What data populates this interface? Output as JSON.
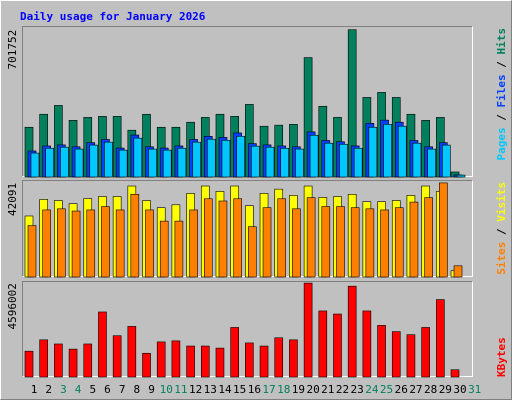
{
  "chart_data": [
    {
      "type": "bar",
      "title": "Daily usage for January 2026",
      "legend_separator": " / ",
      "ylim": [
        0,
        710000
      ],
      "yticks": [
        701752
      ],
      "grid": false,
      "series": [
        {
          "name": "Hits",
          "color": "#00805c",
          "values": [
            237000,
            299000,
            341000,
            270000,
            284000,
            289000,
            289000,
            223000,
            299000,
            237000,
            237000,
            261000,
            284000,
            299000,
            289000,
            346000,
            242000,
            247000,
            251000,
            569000,
            337000,
            284000,
            701752,
            379000,
            403000,
            379000,
            299000,
            270000,
            284000,
            24000,
            0
          ]
        },
        {
          "name": "Files",
          "color": "#0040ff",
          "values": [
            124000,
            148000,
            153000,
            144000,
            164000,
            179000,
            138000,
            200000,
            144000,
            138000,
            148000,
            179000,
            194000,
            189000,
            210000,
            159000,
            153000,
            148000,
            144000,
            215000,
            174000,
            168000,
            148000,
            256000,
            271000,
            261000,
            174000,
            144000,
            164000,
            10000,
            0
          ]
        },
        {
          "name": "Pages",
          "color": "#00c8ff",
          "values": [
            114000,
            137000,
            142000,
            133000,
            152000,
            166000,
            128000,
            185000,
            133000,
            128000,
            137000,
            166000,
            180000,
            175000,
            194000,
            147000,
            142000,
            137000,
            133000,
            199000,
            161000,
            156000,
            137000,
            237000,
            251000,
            242000,
            161000,
            133000,
            152000,
            9000,
            0
          ]
        }
      ]
    },
    {
      "type": "bar",
      "legend_separator": " / ",
      "ylim": [
        0,
        42500
      ],
      "yticks": [
        42091
      ],
      "grid": false,
      "series": [
        {
          "name": "Visits",
          "color": "#ffff00",
          "values": [
            27300,
            34700,
            34200,
            32800,
            35100,
            36000,
            36000,
            40700,
            34200,
            31000,
            32300,
            37400,
            40700,
            38300,
            40700,
            31900,
            37400,
            39300,
            36500,
            40700,
            35600,
            36000,
            37000,
            33700,
            33700,
            34200,
            36500,
            40700,
            38300,
            2800,
            0
          ]
        },
        {
          "name": "Sites",
          "color": "#ff8000",
          "values": [
            23000,
            30000,
            30500,
            29500,
            30000,
            31500,
            30000,
            37000,
            30000,
            25000,
            25000,
            30000,
            35000,
            34000,
            35000,
            22500,
            31000,
            35000,
            30500,
            35500,
            31500,
            31500,
            31000,
            30500,
            30000,
            31000,
            33500,
            35500,
            42091,
            5000,
            0
          ]
        }
      ]
    },
    {
      "type": "bar",
      "ylim": [
        0,
        4600000
      ],
      "yticks": [
        4596002
      ],
      "grid": false,
      "categories": [
        "1",
        "2",
        "3",
        "4",
        "5",
        "6",
        "7",
        "8",
        "9",
        "10",
        "11",
        "12",
        "13",
        "14",
        "15",
        "16",
        "17",
        "18",
        "19",
        "20",
        "21",
        "22",
        "23",
        "24",
        "25",
        "26",
        "27",
        "28",
        "29",
        "30",
        "31"
      ],
      "category_colors": [
        "#000000",
        "#000000",
        "#00805c",
        "#00805c",
        "#000000",
        "#000000",
        "#000000",
        "#000000",
        "#000000",
        "#00805c",
        "#00805c",
        "#000000",
        "#000000",
        "#000000",
        "#000000",
        "#000000",
        "#00805c",
        "#00805c",
        "#000000",
        "#000000",
        "#000000",
        "#000000",
        "#000000",
        "#00805c",
        "#00805c",
        "#000000",
        "#000000",
        "#000000",
        "#000000",
        "#000000",
        "#00805c"
      ],
      "series": [
        {
          "name": "KBytes",
          "color": "#ff0000",
          "values": [
            1263000,
            1818000,
            1616000,
            1364000,
            1616000,
            3182000,
            2020000,
            2475000,
            1162000,
            1717000,
            1768000,
            1515000,
            1515000,
            1414000,
            2424000,
            1667000,
            1515000,
            1919000,
            1818000,
            4596002,
            3232000,
            3081000,
            4444000,
            3232000,
            2525000,
            2222000,
            2071000,
            2424000,
            3788000,
            354000,
            0
          ]
        }
      ]
    }
  ]
}
